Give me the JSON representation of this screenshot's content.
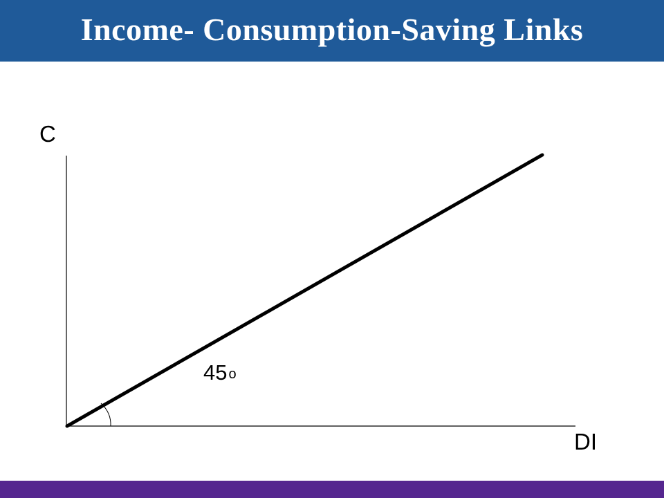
{
  "slide": {
    "title": "Income- Consumption-Saving Links"
  },
  "diagram": {
    "y_axis_label": "C",
    "x_axis_label": "DI",
    "angle_label": "45",
    "angle_unit": "o",
    "line_angle_degrees": 45
  },
  "colors": {
    "header": "#1f5a99",
    "footer": "#55268f",
    "line": "#000000"
  }
}
